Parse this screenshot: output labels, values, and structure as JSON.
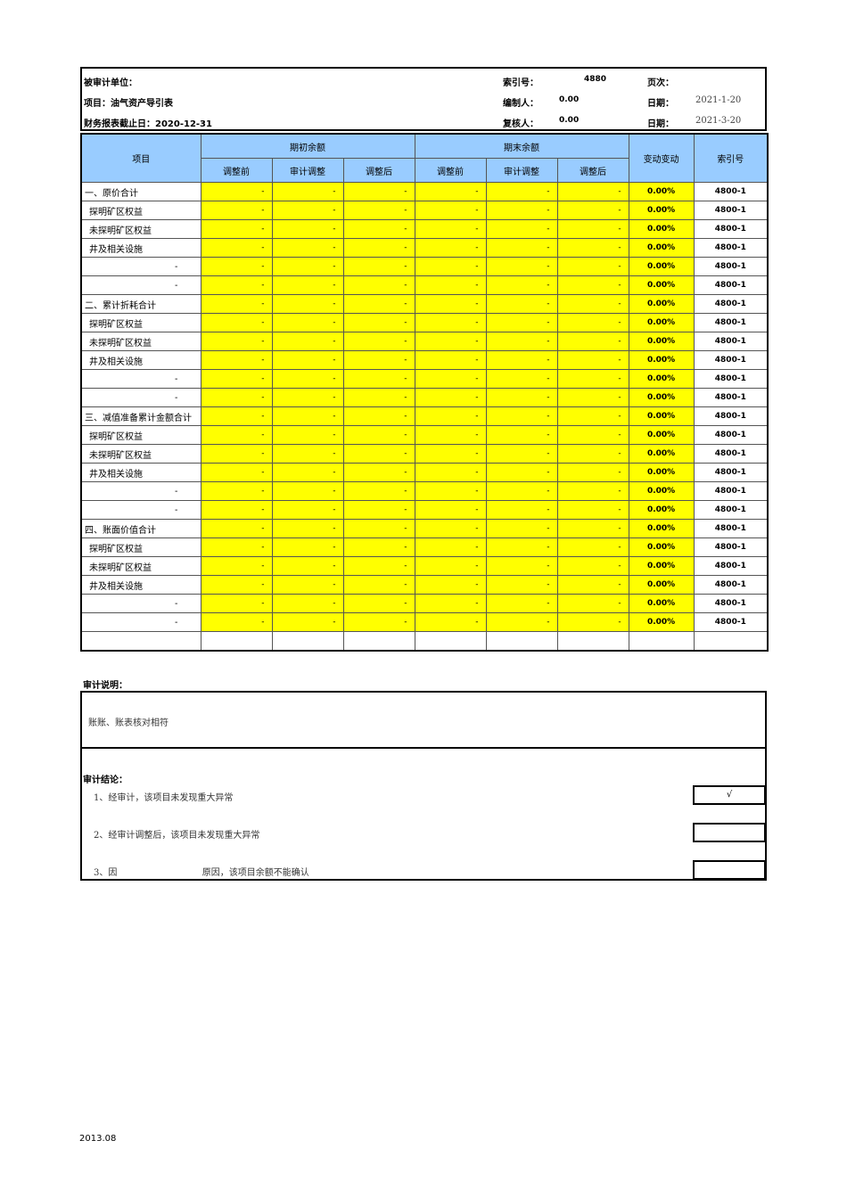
{
  "header": {
    "auditee_label": "被审计单位：",
    "project": "项目：油气资产导引表",
    "report_date": "财务报表截止日：2020-12-31",
    "index_label": "索引号：",
    "index_value": "4880",
    "page_label": "页次：",
    "preparer_label": "编制人：",
    "preparer_value": "0.00",
    "date1_label": "日期：",
    "date1_value": "2021-1-20",
    "reviewer_label": "复核人：",
    "reviewer_value": "0.00",
    "date2_label": "日期：",
    "date2_value": "2021-3-20"
  },
  "table": {
    "col_item": "项目",
    "group_opening": "期初余额",
    "group_closing": "期末余额",
    "sub_cols": [
      "调整前",
      "审计调整",
      "调整后",
      "调整前",
      "审计调整",
      "调整后"
    ],
    "col_change": "变动变动",
    "col_index": "索引号",
    "rows": [
      {
        "label": "一、原价合计",
        "type": "main"
      },
      {
        "label": "探明矿区权益",
        "type": "sub"
      },
      {
        "label": "未探明矿区权益",
        "type": "sub"
      },
      {
        "label": "井及相关设施",
        "type": "sub"
      },
      {
        "label": "-",
        "type": "dash"
      },
      {
        "label": "-",
        "type": "dash"
      },
      {
        "label": "二、累计折耗合计",
        "type": "main"
      },
      {
        "label": "探明矿区权益",
        "type": "sub"
      },
      {
        "label": "未探明矿区权益",
        "type": "sub"
      },
      {
        "label": "井及相关设施",
        "type": "sub"
      },
      {
        "label": "-",
        "type": "dash"
      },
      {
        "label": "-",
        "type": "dash"
      },
      {
        "label": "三、减值准备累计金额合计",
        "type": "main"
      },
      {
        "label": "探明矿区权益",
        "type": "sub"
      },
      {
        "label": "未探明矿区权益",
        "type": "sub"
      },
      {
        "label": "井及相关设施",
        "type": "sub"
      },
      {
        "label": "-",
        "type": "dash"
      },
      {
        "label": "-",
        "type": "dash"
      },
      {
        "label": "四、账面价值合计",
        "type": "main"
      },
      {
        "label": "探明矿区权益",
        "type": "sub"
      },
      {
        "label": "未探明矿区权益",
        "type": "sub"
      },
      {
        "label": "井及相关设施",
        "type": "sub"
      },
      {
        "label": "-",
        "type": "dash"
      },
      {
        "label": "-",
        "type": "dash"
      }
    ],
    "cell_value": "-",
    "change_value": "0.00%",
    "index_value": "4800-1"
  },
  "notes": {
    "explanation_label": "审计说明：",
    "explanation_text": "账账、账表核对相符",
    "conclusion_label": "审计结论：",
    "conclusions": [
      {
        "text": "1、经审计，该项目未发现重大异常",
        "mark": "√"
      },
      {
        "text": "2、经审计调整后，该项目未发现重大异常",
        "mark": ""
      },
      {
        "text": "3、因                              原因，该项目余额不能确认",
        "mark": ""
      }
    ]
  },
  "footer": {
    "version": "2013.08"
  },
  "colors": {
    "header_bg": "#99ccff",
    "value_bg": "#ffff00"
  }
}
